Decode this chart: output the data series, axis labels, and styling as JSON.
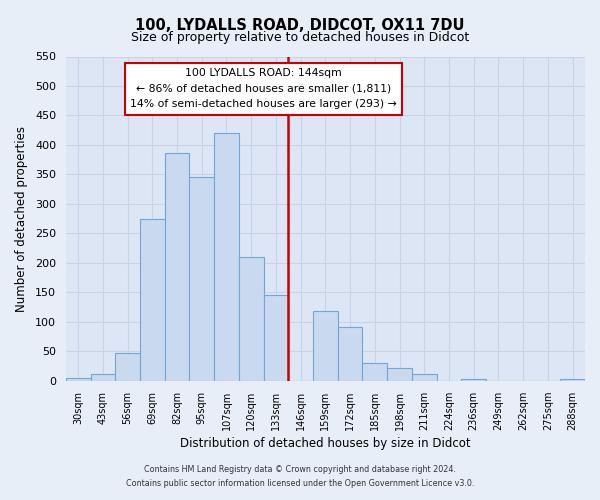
{
  "title": "100, LYDALLS ROAD, DIDCOT, OX11 7DU",
  "subtitle": "Size of property relative to detached houses in Didcot",
  "xlabel": "Distribution of detached houses by size in Didcot",
  "ylabel": "Number of detached properties",
  "bar_labels": [
    "30sqm",
    "43sqm",
    "56sqm",
    "69sqm",
    "82sqm",
    "95sqm",
    "107sqm",
    "120sqm",
    "133sqm",
    "146sqm",
    "159sqm",
    "172sqm",
    "185sqm",
    "198sqm",
    "211sqm",
    "224sqm",
    "236sqm",
    "249sqm",
    "262sqm",
    "275sqm",
    "288sqm"
  ],
  "bar_values": [
    5,
    12,
    48,
    275,
    387,
    345,
    420,
    210,
    145,
    0,
    118,
    92,
    31,
    22,
    12,
    0,
    3,
    0,
    0,
    0,
    3
  ],
  "bar_color": "#c8d9f0",
  "bar_edge_color": "#6fa8d8",
  "reference_line_x_label": "146sqm",
  "reference_line_color": "#cc0000",
  "annotation_title": "100 LYDALLS ROAD: 144sqm",
  "annotation_line1": "← 86% of detached houses are smaller (1,811)",
  "annotation_line2": "14% of semi-detached houses are larger (293) →",
  "annotation_box_color": "#ffffff",
  "annotation_box_edge": "#cc0000",
  "ylim": [
    0,
    550
  ],
  "yticks": [
    0,
    50,
    100,
    150,
    200,
    250,
    300,
    350,
    400,
    450,
    500,
    550
  ],
  "footer_line1": "Contains HM Land Registry data © Crown copyright and database right 2024.",
  "footer_line2": "Contains public sector information licensed under the Open Government Licence v3.0.",
  "bg_color": "#e8eef8",
  "plot_bg_color": "#dde6f4",
  "grid_color": "#c8d2e8"
}
